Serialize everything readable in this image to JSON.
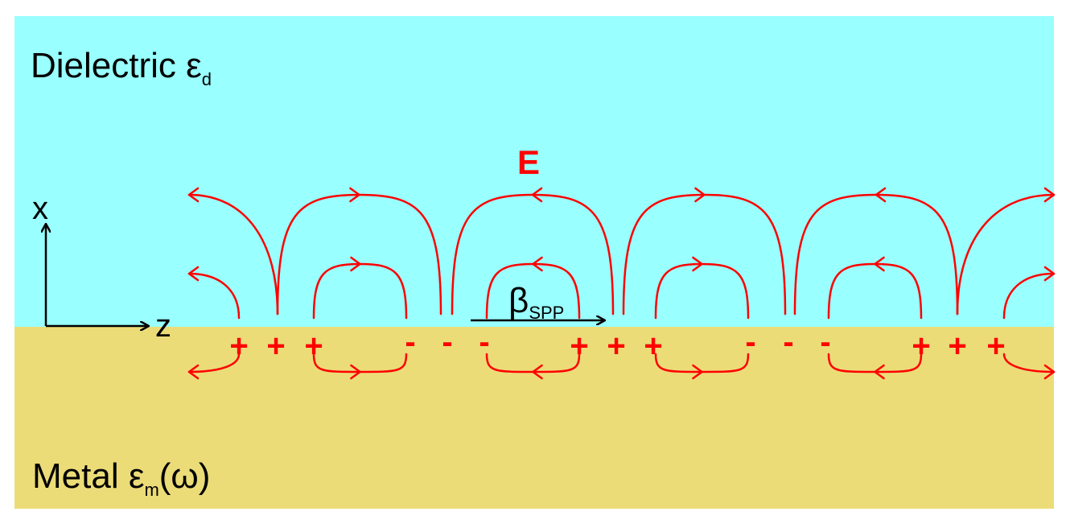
{
  "dielectric": {
    "name": "Dielectric",
    "symbol": "ε",
    "subscript": "d",
    "color": "#99ffff"
  },
  "metal": {
    "name": "Metal",
    "symbol": "ε",
    "subscript": "m",
    "suffix": "(ω)",
    "color": "#ebdc78"
  },
  "field": {
    "label": "E",
    "color": "#ff0000"
  },
  "axes": {
    "x_label": "x",
    "z_label": "z"
  },
  "propagation": {
    "symbol": "β",
    "subscript": "SPP"
  },
  "charges": {
    "positive": "+",
    "negative": "-",
    "groups": [
      {
        "sign": "positive",
        "count": 3
      },
      {
        "sign": "negative",
        "count": 3
      },
      {
        "sign": "positive",
        "count": 3
      },
      {
        "sign": "negative",
        "count": 3
      },
      {
        "sign": "positive",
        "count": 3
      }
    ]
  }
}
